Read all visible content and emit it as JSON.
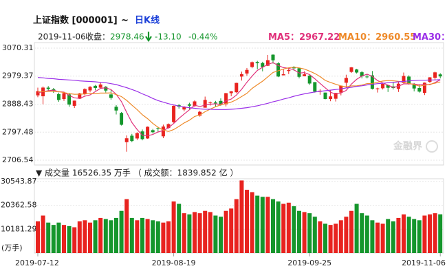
{
  "header": {
    "title": "上证指数 [000001]",
    "separator": "~",
    "period": "日K线",
    "date": "2019-11-06",
    "close_label": "收盘：",
    "close": "2978.46",
    "change": "-13.10",
    "change_pct": "-0.44%",
    "watermark": "金融界"
  },
  "chart_data": [
    {
      "type": "candlestick",
      "categories": [
        "2019-07-12",
        null,
        null,
        null,
        null,
        null,
        null,
        null,
        null,
        null,
        null,
        null,
        null,
        null,
        null,
        null,
        null,
        null,
        null,
        null,
        null,
        null,
        null,
        null,
        null,
        null,
        "2019-08-19",
        null,
        null,
        null,
        null,
        null,
        null,
        null,
        null,
        null,
        null,
        null,
        null,
        null,
        null,
        null,
        null,
        null,
        null,
        null,
        null,
        null,
        null,
        null,
        null,
        null,
        "2019-09-25",
        null,
        null,
        null,
        null,
        null,
        null,
        null,
        null,
        null,
        null,
        null,
        null,
        null,
        null,
        null,
        null,
        null,
        null,
        null,
        null,
        null,
        null,
        null,
        null,
        "2019-11-06"
      ],
      "open": [
        2917,
        2914,
        2942,
        2937,
        2921,
        2905,
        2920,
        2883,
        2906,
        2921,
        2933,
        2948,
        2942,
        2945,
        2920,
        2880,
        2860,
        2765,
        2786,
        2777,
        2800,
        2777,
        2804,
        2811,
        2784,
        2811,
        2830,
        2885,
        2871,
        2888,
        2882,
        2851,
        2877,
        2892,
        2894,
        2899,
        2888,
        2924,
        2927,
        2978,
        2988,
        3009,
        3025,
        3022,
        3013,
        3049,
        3021,
        2982,
        2996,
        3007,
        3005,
        2979,
        2981,
        2960,
        2929,
        2926,
        2905,
        2906,
        2926,
        2958,
        2993,
        3001,
        2992,
        2978,
        2982,
        2937,
        2940,
        2950,
        2946,
        2938,
        2957,
        2978,
        2951,
        2941,
        2925,
        2961,
        2974,
        2985
      ],
      "high": [
        2942,
        2946,
        2947,
        2941,
        2926,
        2928,
        2925,
        2900,
        2925,
        2940,
        2947,
        2951,
        2958,
        2947,
        2934,
        2885,
        2863,
        2787,
        2792,
        2797,
        2806,
        2816,
        2808,
        2815,
        2822,
        2826,
        2884,
        2889,
        2882,
        2893,
        2901,
        2867,
        2913,
        2897,
        2899,
        2907,
        2925,
        2931,
        2958,
        2994,
        3006,
        3027,
        3029,
        3026,
        3048,
        3050,
        3025,
        3002,
        3006,
        3012,
        3005,
        2995,
        2984,
        2960,
        2937,
        2926,
        2935,
        2925,
        2948,
        2984,
        3009,
        3003,
        2996,
        2984,
        2996,
        2942,
        2956,
        2951,
        2961,
        2960,
        2991,
        2982,
        2957,
        2953,
        2959,
        2976,
        2994,
        2989
      ],
      "low": [
        2911,
        2888,
        2931,
        2925,
        2896,
        2899,
        2880,
        2876,
        2905,
        2917,
        2927,
        2933,
        2939,
        2926,
        2903,
        2855,
        2819,
        2734,
        2765,
        2772,
        2771,
        2776,
        2793,
        2799,
        2778,
        2809,
        2828,
        2874,
        2865,
        2872,
        2880,
        2848,
        2877,
        2884,
        2880,
        2883,
        2881,
        2914,
        2924,
        2965,
        2981,
        3005,
        3002,
        2995,
        3012,
        3020,
        2976,
        2982,
        2986,
        2997,
        2972,
        2979,
        2951,
        2926,
        2919,
        2904,
        2898,
        2897,
        2917,
        2942,
        2990,
        2988,
        2972,
        2972,
        2936,
        2926,
        2936,
        2928,
        2936,
        2928,
        2956,
        2952,
        2930,
        2926,
        2918,
        2957,
        2967,
        2972
      ],
      "close": [
        2930.6,
        2942.2,
        2937.6,
        2931.7,
        2902.0,
        2924.2,
        2887.0,
        2899.9,
        2923.3,
        2937.4,
        2944.5,
        2941.0,
        2952.3,
        2932.5,
        2908.8,
        2867.8,
        2821.5,
        2777.6,
        2768.7,
        2794.6,
        2774.8,
        2815.0,
        2797.3,
        2808.9,
        2815.8,
        2823.8,
        2883.1,
        2880.0,
        2880.3,
        2883.4,
        2897.4,
        2863.6,
        2902.2,
        2893.8,
        2890.9,
        2886.2,
        2924.1,
        2930.2,
        2957.4,
        2985.9,
        2999.6,
        3024.7,
        3021.2,
        3008.8,
        3031.2,
        3030.8,
        2978.1,
        2985.7,
        2999.3,
        3006.5,
        2977.1,
        2985.3,
        2955.4,
        2929.1,
        2932.2,
        2905.2,
        2913.6,
        2924.9,
        2947.7,
        2973.7,
        3007.9,
        2991.1,
        2978.7,
        2977.3,
        2938.1,
        2939.6,
        2954.4,
        2941.6,
        2940.9,
        2954.9,
        2980.1,
        2954.2,
        2939.3,
        2929.1,
        2958.2,
        2975.5,
        2991.6,
        2978.46
      ],
      "up_color": "#e8231f",
      "down_color": "#15962c",
      "ylim": [
        2706.54,
        3070.31
      ],
      "yticks": [
        2706.54,
        2797.48,
        2888.43,
        2979.37,
        3070.31
      ],
      "grid": true,
      "series": [
        {
          "name": "MA5",
          "legend_value": "：2967.22",
          "color": "#e0307a",
          "values": [
            2925,
            2929,
            2932,
            2934,
            2928.8,
            2927.5,
            2916.5,
            2909.0,
            2907.3,
            2914.4,
            2918.4,
            2929.2,
            2939.7,
            2941.5,
            2935.8,
            2920.5,
            2896.6,
            2861.6,
            2828.9,
            2806.0,
            2787.4,
            2786.1,
            2790.1,
            2798.1,
            2802.4,
            2812.2,
            2825.8,
            2842.3,
            2856.6,
            2870.1,
            2884.8,
            2880.9,
            2885.4,
            2888.1,
            2889.6,
            2887.3,
            2899.4,
            2905.0,
            2917.8,
            2936.8,
            2959.4,
            2979.6,
            2997.8,
            3008.0,
            3017.1,
            3023.3,
            3014.0,
            3006.9,
            3005.0,
            3000.1,
            2989.3,
            2990.8,
            2984.7,
            2970.7,
            2955.8,
            2941.4,
            2927.1,
            2921.0,
            2924.7,
            2933.0,
            2953.6,
            2969.1,
            2979.8,
            2985.7,
            2978.6,
            2965.0,
            2957.6,
            2950.2,
            2942.9,
            2946.3,
            2954.4,
            2954.3,
            2953.9,
            2951.5,
            2952.2,
            2951.3,
            2958.7,
            2967.2
          ]
        },
        {
          "name": "MA10",
          "legend_value": "：2960.55",
          "color": "#ee8a2a",
          "values": [
            2928,
            2929,
            2930,
            2930,
            2929,
            2926,
            2922.8,
            2920.5,
            2920.7,
            2921.6,
            2923.0,
            2922.9,
            2924.4,
            2924.4,
            2925.1,
            2919.5,
            2912.9,
            2900.7,
            2885.2,
            2870.9,
            2854.0,
            2841.4,
            2825.9,
            2813.5,
            2804.2,
            2799.8,
            2806.0,
            2816.2,
            2827.4,
            2836.3,
            2848.5,
            2853.4,
            2863.9,
            2872.4,
            2879.9,
            2886.1,
            2890.2,
            2895.2,
            2903.0,
            2913.2,
            2923.4,
            2939.5,
            2951.4,
            2962.9,
            2977.0,
            2991.4,
            2996.8,
            3002.4,
            3006.5,
            3008.6,
            3006.3,
            3002.4,
            2995.8,
            2987.9,
            2978.0,
            2965.4,
            2959.0,
            2952.9,
            2947.7,
            2944.4,
            2947.5,
            2948.1,
            2950.4,
            2955.2,
            2955.8,
            2959.3,
            2963.4,
            2965.0,
            2964.3,
            2962.5,
            2959.7,
            2956.0,
            2952.1,
            2947.2,
            2949.3,
            2952.9,
            2956.5,
            2960.6
          ]
        },
        {
          "name": "MA30",
          "legend_value": "：",
          "color": "#9a2ee8",
          "values": [
            2975,
            2974,
            2972,
            2971,
            2969,
            2968,
            2967,
            2966,
            2964,
            2963,
            2962,
            2961,
            2959,
            2958,
            2955,
            2952,
            2947,
            2942,
            2936,
            2930,
            2922,
            2915,
            2907,
            2900,
            2895,
            2890,
            2886,
            2882,
            2879,
            2877,
            2875,
            2873,
            2872,
            2872,
            2871,
            2871,
            2871,
            2872,
            2873,
            2875,
            2877,
            2880,
            2883,
            2887,
            2891,
            2896,
            2900,
            2905,
            2909,
            2914,
            2918,
            2922,
            2925,
            2928,
            2930,
            2932,
            2934,
            2936,
            2938,
            2941,
            2943,
            2946,
            2948,
            2951,
            2953,
            2955,
            2956,
            2958,
            2959,
            2961,
            2962,
            2964,
            2965,
            2966,
            2966,
            2967,
            2967,
            2968
          ]
        }
      ]
    },
    {
      "type": "bar",
      "title": "▼ 成交量   16526.35 万手  （ 成交额：1839.852 亿 ）",
      "y_label": "(万手)",
      "values": [
        13500,
        16000,
        13000,
        12000,
        13000,
        12000,
        11500,
        11000,
        13500,
        14000,
        13000,
        14000,
        15000,
        14500,
        14000,
        15000,
        18000,
        23000,
        15000,
        14000,
        15000,
        14500,
        14000,
        13500,
        13000,
        13500,
        22000,
        21000,
        17000,
        16500,
        17500,
        17000,
        18000,
        17500,
        16000,
        15500,
        18000,
        19000,
        23000,
        31000,
        27000,
        26000,
        24500,
        24000,
        24000,
        23000,
        22000,
        21000,
        21500,
        20000,
        18000,
        17500,
        17000,
        15500,
        13500,
        12500,
        12000,
        12500,
        14000,
        15500,
        18000,
        21000,
        17000,
        16000,
        14000,
        13000,
        12500,
        14500,
        13500,
        15000,
        16500,
        15500,
        14500,
        14000,
        16000,
        16500,
        17000,
        16526.35
      ],
      "ylim": [
        0,
        30543.87
      ],
      "yticks": [
        10181.29,
        20362.58,
        30543.87
      ],
      "grid": true
    }
  ]
}
